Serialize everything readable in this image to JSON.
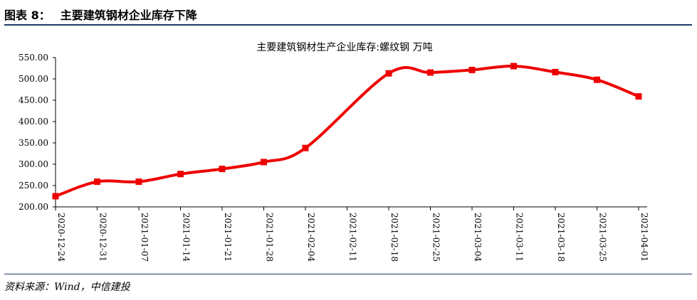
{
  "header": {
    "figure_number": "图表 8：",
    "figure_title": "主要建筑钢材企业库存下降"
  },
  "source": "资料来源：Wind，中信建投",
  "colors": {
    "series": "#ee0000",
    "rule": "#1f3864",
    "axis": "#000000"
  },
  "chart_data": {
    "type": "line",
    "title": "主要建筑钢材生产企业库存:螺纹钢 万吨",
    "xlabel": "",
    "ylabel": "",
    "ylim": [
      200,
      550
    ],
    "yticks": [
      "550.00",
      "500.00",
      "450.00",
      "400.00",
      "350.00",
      "300.00",
      "250.00",
      "200.00"
    ],
    "yticks_values": [
      550,
      500,
      450,
      400,
      350,
      300,
      250,
      200
    ],
    "categories": [
      "2020-12-24",
      "2020-12-31",
      "2021-01-07",
      "2021-01-14",
      "2021-01-21",
      "2021-01-28",
      "2021-02-04",
      "2021-02-11",
      "2021-02-18",
      "2021-02-25",
      "2021-03-04",
      "2021-03-11",
      "2021-03-18",
      "2021-03-25",
      "2021-04-01"
    ],
    "values": [
      225,
      259,
      259,
      277,
      289,
      305,
      338,
      null,
      513,
      515,
      521,
      530,
      516,
      498,
      459
    ],
    "grid": false,
    "legend": "none",
    "marker": "square"
  }
}
